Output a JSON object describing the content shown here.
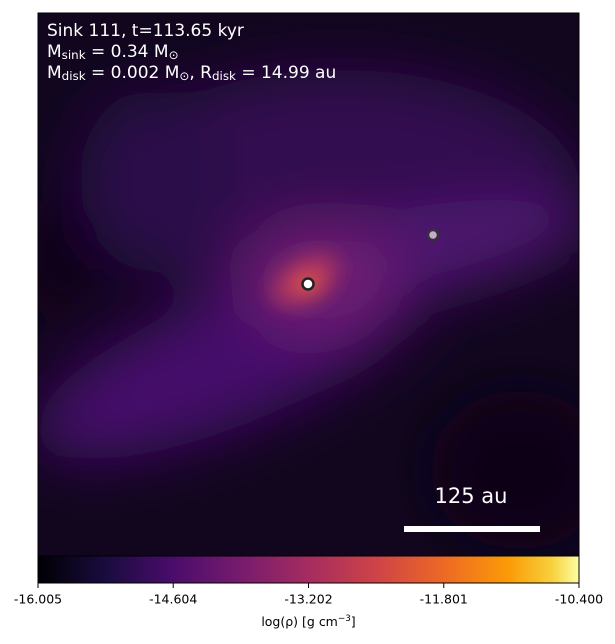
{
  "chart_data": {
    "type": "image",
    "annotations": [
      [
        {
          "text": "Sink 111, t=113.65 kyr"
        }
      ],
      [
        {
          "text": "M"
        },
        {
          "sub": "sink"
        },
        {
          "text": " = 0.34 M"
        },
        {
          "sub": "⊙"
        }
      ],
      [
        {
          "text": "M"
        },
        {
          "sub": "disk"
        },
        {
          "text": " = 0.002 M"
        },
        {
          "sub": "⊙"
        },
        {
          "text": ", R"
        },
        {
          "sub": "disk"
        },
        {
          "text": " = 14.99 au"
        }
      ]
    ],
    "scale_bar": "125 au",
    "colorbar": {
      "colormap": "inferno",
      "lim": [
        -16.005,
        -10.4
      ],
      "ticks": [
        -16.005,
        -14.604,
        -13.202,
        -11.801,
        {
          "value": -10.4,
          "label": "-10.400"
        }
      ],
      "label": [
        {
          "text": "log(ρ) [g cm"
        },
        {
          "sup": "−3"
        },
        {
          "text": "]"
        }
      ]
    }
  }
}
